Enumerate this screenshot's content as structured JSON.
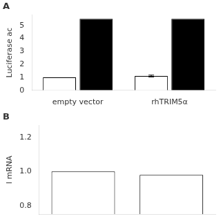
{
  "chart_data": [
    {
      "type": "bar",
      "title": "A",
      "ylabel": "Luciferase ac",
      "categories": [
        "empty vector",
        "rhTRIM5α"
      ],
      "series": [
        {
          "color": "white",
          "values": [
            1.0,
            1.1
          ],
          "errors": [
            0,
            0.07
          ]
        },
        {
          "color": "black",
          "values": [
            5.5,
            5.5
          ]
        }
      ],
      "ylim": [
        0,
        5.8
      ],
      "yticks": [
        0,
        1,
        2,
        3,
        4,
        5
      ],
      "grid": false
    },
    {
      "type": "bar",
      "title": "B",
      "ylabel": "l mRNA",
      "categories": [
        null,
        null
      ],
      "values": [
        1.0,
        0.98
      ],
      "color": "white",
      "ylim": [
        0.75,
        1.27
      ],
      "yticks": [
        0.8,
        {
          "value": 1.0,
          "label": "1.0"
        },
        1.2
      ],
      "grid": false,
      "tick_labels": "y"
    }
  ]
}
